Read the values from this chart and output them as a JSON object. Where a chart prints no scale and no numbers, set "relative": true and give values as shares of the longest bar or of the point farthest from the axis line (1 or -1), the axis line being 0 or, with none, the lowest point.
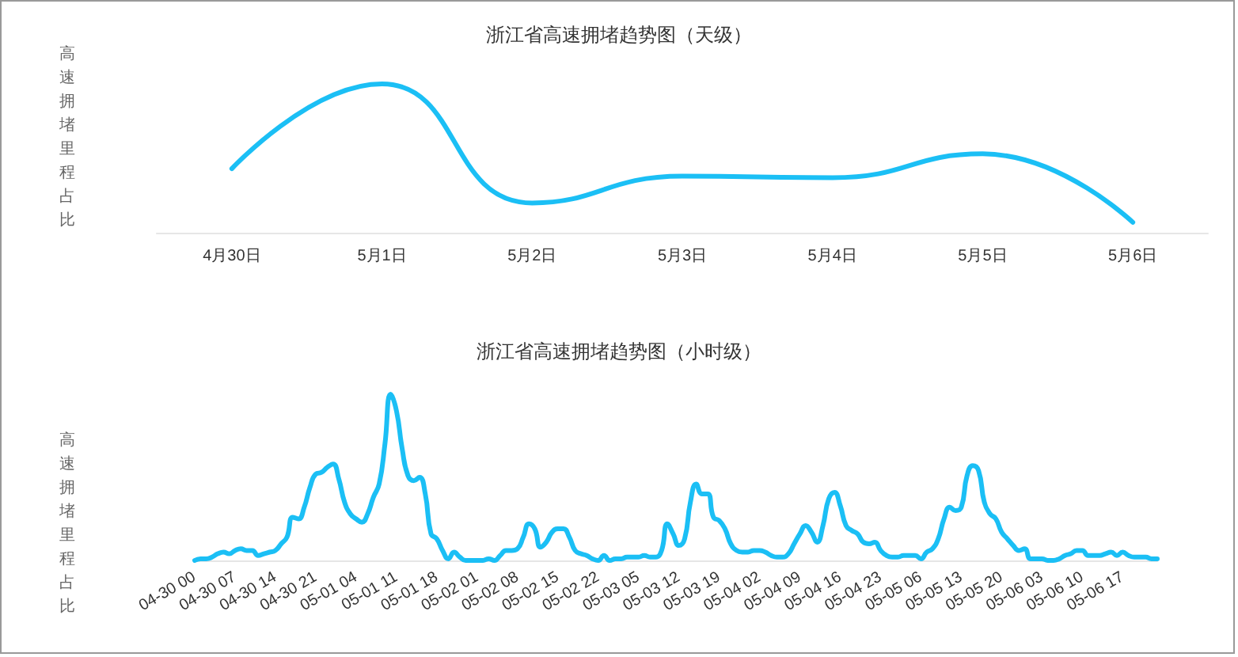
{
  "chart_data": [
    {
      "type": "line",
      "title": "浙江省高速拥堵趋势图（天级）",
      "ylabel": "高速拥堵里程占比",
      "relative": true,
      "color": "#1bbff5",
      "categories": [
        "4月30日",
        "5月1日",
        "5月2日",
        "5月3日",
        "5月4日",
        "5月5日",
        "5月6日"
      ],
      "values": [
        0.43,
        1,
        0.2,
        0.38,
        0.37,
        0.53,
        0.07
      ]
    },
    {
      "type": "line",
      "title": "浙江省高速拥堵趋势图（小时级）",
      "ylabel": "高速拥堵里程占比",
      "relative": true,
      "color": "#1bbff5",
      "categories": [
        "04-30 00",
        null,
        null,
        null,
        null,
        null,
        null,
        "04-30 07",
        null,
        null,
        null,
        null,
        null,
        null,
        "04-30 14",
        null,
        null,
        null,
        null,
        null,
        null,
        "04-30 21",
        null,
        null,
        null,
        null,
        null,
        null,
        "05-01 04",
        null,
        null,
        null,
        null,
        null,
        null,
        "05-01 11",
        null,
        null,
        null,
        null,
        null,
        null,
        "05-01 18",
        null,
        null,
        null,
        null,
        null,
        null,
        "05-02 01",
        null,
        null,
        null,
        null,
        null,
        null,
        "05-02 08",
        null,
        null,
        null,
        null,
        null,
        null,
        "05-02 15",
        null,
        null,
        null,
        null,
        null,
        null,
        "05-02 22",
        null,
        null,
        null,
        null,
        null,
        null,
        "05-03 05",
        null,
        null,
        null,
        null,
        null,
        null,
        "05-03 12",
        null,
        null,
        null,
        null,
        null,
        null,
        "05-03 19",
        null,
        null,
        null,
        null,
        null,
        null,
        "05-04 02",
        null,
        null,
        null,
        null,
        null,
        null,
        "05-04 09",
        null,
        null,
        null,
        null,
        null,
        null,
        "05-04 16",
        null,
        null,
        null,
        null,
        null,
        null,
        "05-04 23",
        null,
        null,
        null,
        null,
        null,
        null,
        "05-05 06",
        null,
        null,
        null,
        null,
        null,
        null,
        "05-05 13",
        null,
        null,
        null,
        null,
        null,
        null,
        "05-05 20",
        null,
        null,
        null,
        null,
        null,
        null,
        "05-06 03",
        null,
        null,
        null,
        null,
        null,
        null,
        "05-06 10",
        null,
        null,
        null,
        null,
        null,
        null,
        "05-06 17",
        null,
        null,
        null,
        null,
        null,
        null
      ],
      "values": [
        0,
        0.01,
        0.01,
        0.02,
        0.04,
        0.05,
        0.04,
        0.06,
        0.07,
        0.06,
        0.06,
        0.03,
        0.04,
        0.05,
        0.06,
        0.1,
        0.14,
        0.26,
        0.25,
        0.32,
        0.44,
        0.52,
        0.53,
        0.56,
        0.58,
        0.49,
        0.35,
        0.28,
        0.25,
        0.23,
        0.28,
        0.38,
        0.46,
        0.7,
        1,
        0.9,
        0.67,
        0.51,
        0.48,
        0.5,
        0.4,
        0.16,
        0.13,
        0.06,
        0.01,
        0.05,
        0.02,
        0,
        0,
        0,
        0,
        0.01,
        0,
        0.03,
        0.06,
        0.06,
        0.07,
        0.14,
        0.22,
        0.19,
        0.08,
        0.11,
        0.17,
        0.19,
        0.19,
        0.14,
        0.06,
        0.04,
        0.03,
        0.01,
        0,
        0.03,
        0,
        0.01,
        0.01,
        0.02,
        0.02,
        0.02,
        0.03,
        0.02,
        0.02,
        0.06,
        0.22,
        0.16,
        0.09,
        0.13,
        0.35,
        0.46,
        0.4,
        0.4,
        0.26,
        0.24,
        0.19,
        0.1,
        0.06,
        0.05,
        0.05,
        0.06,
        0.06,
        0.05,
        0.03,
        0.02,
        0.02,
        0.04,
        0.1,
        0.16,
        0.21,
        0.17,
        0.11,
        0.21,
        0.37,
        0.41,
        0.33,
        0.21,
        0.18,
        0.16,
        0.11,
        0.1,
        0.11,
        0.06,
        0.03,
        0.02,
        0.02,
        0.03,
        0.03,
        0.03,
        0.01,
        0.05,
        0.07,
        0.13,
        0.25,
        0.32,
        0.3,
        0.32,
        0.51,
        0.57,
        0.54,
        0.35,
        0.28,
        0.25,
        0.17,
        0.13,
        0.09,
        0.06,
        0.07,
        0.01,
        0.01,
        0.01,
        0,
        0,
        0.01,
        0.03,
        0.04,
        0.06,
        0.06,
        0.03,
        0.03,
        0.03,
        0.04,
        0.05,
        0.03,
        0.05,
        0.03,
        0.02,
        0.02,
        0.02,
        0.01,
        0.01
      ]
    }
  ]
}
